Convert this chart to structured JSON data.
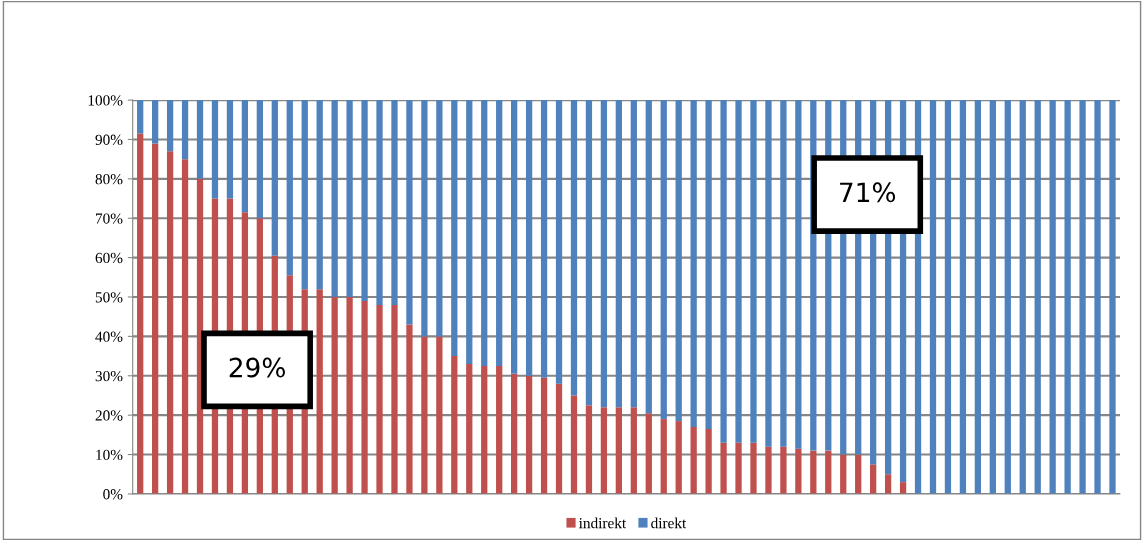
{
  "chart_data": {
    "type": "bar",
    "stacked": true,
    "categories": [
      null,
      null,
      null,
      null,
      null,
      null,
      null,
      null,
      null,
      null,
      null,
      null,
      null,
      null,
      null,
      null,
      null,
      null,
      null,
      null,
      null,
      null,
      null,
      null,
      null,
      null,
      null,
      null,
      null,
      null,
      null,
      null,
      null,
      null,
      null,
      null,
      null,
      null,
      null,
      null,
      null,
      null,
      null,
      null,
      null,
      null,
      null,
      null,
      null,
      null,
      null,
      null,
      null,
      null,
      null,
      null,
      null,
      null,
      null,
      null,
      null,
      null,
      null,
      null,
      null,
      null
    ],
    "series": [
      {
        "name": "indirekt",
        "color": "#c0504d",
        "values": [
          91.5,
          89,
          87,
          85,
          80,
          75,
          75,
          71.5,
          70,
          60.5,
          55.5,
          52,
          52,
          50,
          50,
          49,
          48,
          48,
          43,
          40,
          40,
          35,
          33,
          32.5,
          32.5,
          30.5,
          30,
          29.5,
          28,
          25,
          22.5,
          22,
          22,
          22,
          20.5,
          19,
          18.5,
          17,
          16.5,
          13,
          13,
          13,
          12,
          12,
          11.5,
          11,
          11,
          10,
          10,
          7.5,
          5,
          3,
          0,
          0,
          0,
          0,
          0,
          0,
          0,
          0,
          0,
          0,
          0,
          0,
          0,
          0
        ]
      },
      {
        "name": "direkt",
        "color": "#4f81bd",
        "values": [
          8.5,
          11,
          13,
          15,
          20,
          25,
          25,
          28.5,
          30,
          39.5,
          44.5,
          48,
          48,
          50,
          50,
          51,
          52,
          52,
          57,
          60,
          60,
          65,
          67,
          67.5,
          67.5,
          69.5,
          70,
          70.5,
          72,
          75,
          77.5,
          78,
          78,
          78,
          79.5,
          81,
          81.5,
          83,
          83.5,
          87,
          87,
          87,
          88,
          88,
          88.5,
          89,
          89,
          90,
          90,
          92.5,
          95,
          97,
          100,
          100,
          100,
          100,
          100,
          100,
          100,
          100,
          100,
          100,
          100,
          100,
          100,
          100
        ]
      }
    ],
    "ylim": [
      0,
      100
    ],
    "yticks": [
      {
        "value": 0,
        "label": "0%"
      },
      {
        "value": 10,
        "label": "10%"
      },
      {
        "value": 20,
        "label": "20%"
      },
      {
        "value": 30,
        "label": "30%"
      },
      {
        "value": 40,
        "label": "40%"
      },
      {
        "value": 50,
        "label": "50%"
      },
      {
        "value": 60,
        "label": "60%"
      },
      {
        "value": 70,
        "label": "70%"
      },
      {
        "value": 80,
        "label": "80%"
      },
      {
        "value": 90,
        "label": "90%"
      },
      {
        "value": 100,
        "label": "100%"
      }
    ],
    "grid": "y",
    "legend": "bottom",
    "annotations": [
      "29%",
      "71%"
    ]
  }
}
